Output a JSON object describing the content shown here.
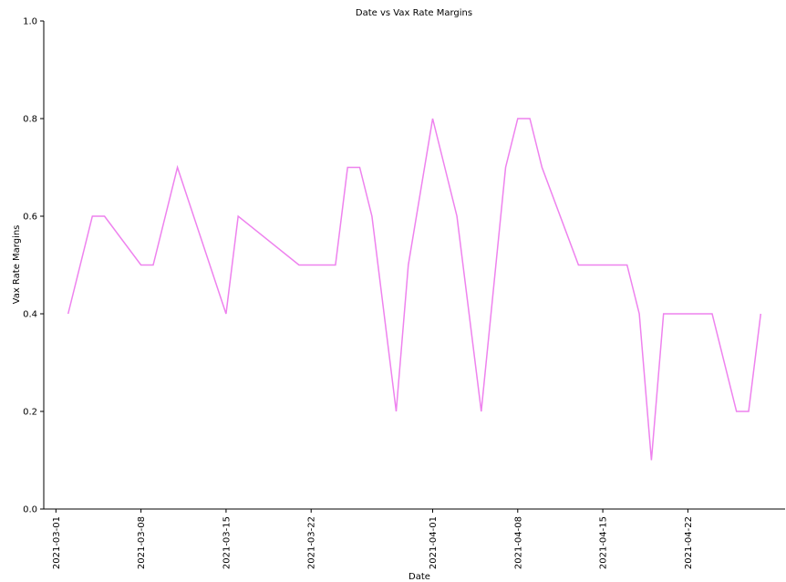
{
  "chart_data": {
    "type": "line",
    "title": "Date vs Vax Rate Margins",
    "xlabel": "Date",
    "ylabel": "Vax Rate Margins",
    "ylim": [
      0.0,
      1.0
    ],
    "xlim": [
      "2021-02-28",
      "2021-04-30"
    ],
    "y_ticks": [
      "0.0",
      "0.2",
      "0.4",
      "0.6",
      "0.8",
      "1.0"
    ],
    "x_ticks": [
      "2021-03-01",
      "2021-03-08",
      "2021-03-15",
      "2021-03-22",
      "2021-04-01",
      "2021-04-08",
      "2021-04-15",
      "2021-04-22"
    ],
    "grid": false,
    "series": [
      {
        "color": "#ee82ee",
        "points": [
          {
            "x": "2021-03-02",
            "y": 0.4
          },
          {
            "x": "2021-03-04",
            "y": 0.6
          },
          {
            "x": "2021-03-05",
            "y": 0.6
          },
          {
            "x": "2021-03-08",
            "y": 0.5
          },
          {
            "x": "2021-03-09",
            "y": 0.5
          },
          {
            "x": "2021-03-11",
            "y": 0.7
          },
          {
            "x": "2021-03-15",
            "y": 0.4
          },
          {
            "x": "2021-03-16",
            "y": 0.6
          },
          {
            "x": "2021-03-21",
            "y": 0.5
          },
          {
            "x": "2021-03-24",
            "y": 0.5
          },
          {
            "x": "2021-03-25",
            "y": 0.7
          },
          {
            "x": "2021-03-26",
            "y": 0.7
          },
          {
            "x": "2021-03-27",
            "y": 0.6
          },
          {
            "x": "2021-03-29",
            "y": 0.2
          },
          {
            "x": "2021-03-30",
            "y": 0.5
          },
          {
            "x": "2021-04-01",
            "y": 0.8
          },
          {
            "x": "2021-04-03",
            "y": 0.6
          },
          {
            "x": "2021-04-05",
            "y": 0.2
          },
          {
            "x": "2021-04-07",
            "y": 0.7
          },
          {
            "x": "2021-04-08",
            "y": 0.8
          },
          {
            "x": "2021-04-09",
            "y": 0.8
          },
          {
            "x": "2021-04-10",
            "y": 0.7
          },
          {
            "x": "2021-04-13",
            "y": 0.5
          },
          {
            "x": "2021-04-17",
            "y": 0.5
          },
          {
            "x": "2021-04-18",
            "y": 0.4
          },
          {
            "x": "2021-04-19",
            "y": 0.1
          },
          {
            "x": "2021-04-20",
            "y": 0.4
          },
          {
            "x": "2021-04-24",
            "y": 0.4
          },
          {
            "x": "2021-04-26",
            "y": 0.2
          },
          {
            "x": "2021-04-27",
            "y": 0.2
          },
          {
            "x": "2021-04-28",
            "y": 0.4
          }
        ]
      }
    ]
  }
}
